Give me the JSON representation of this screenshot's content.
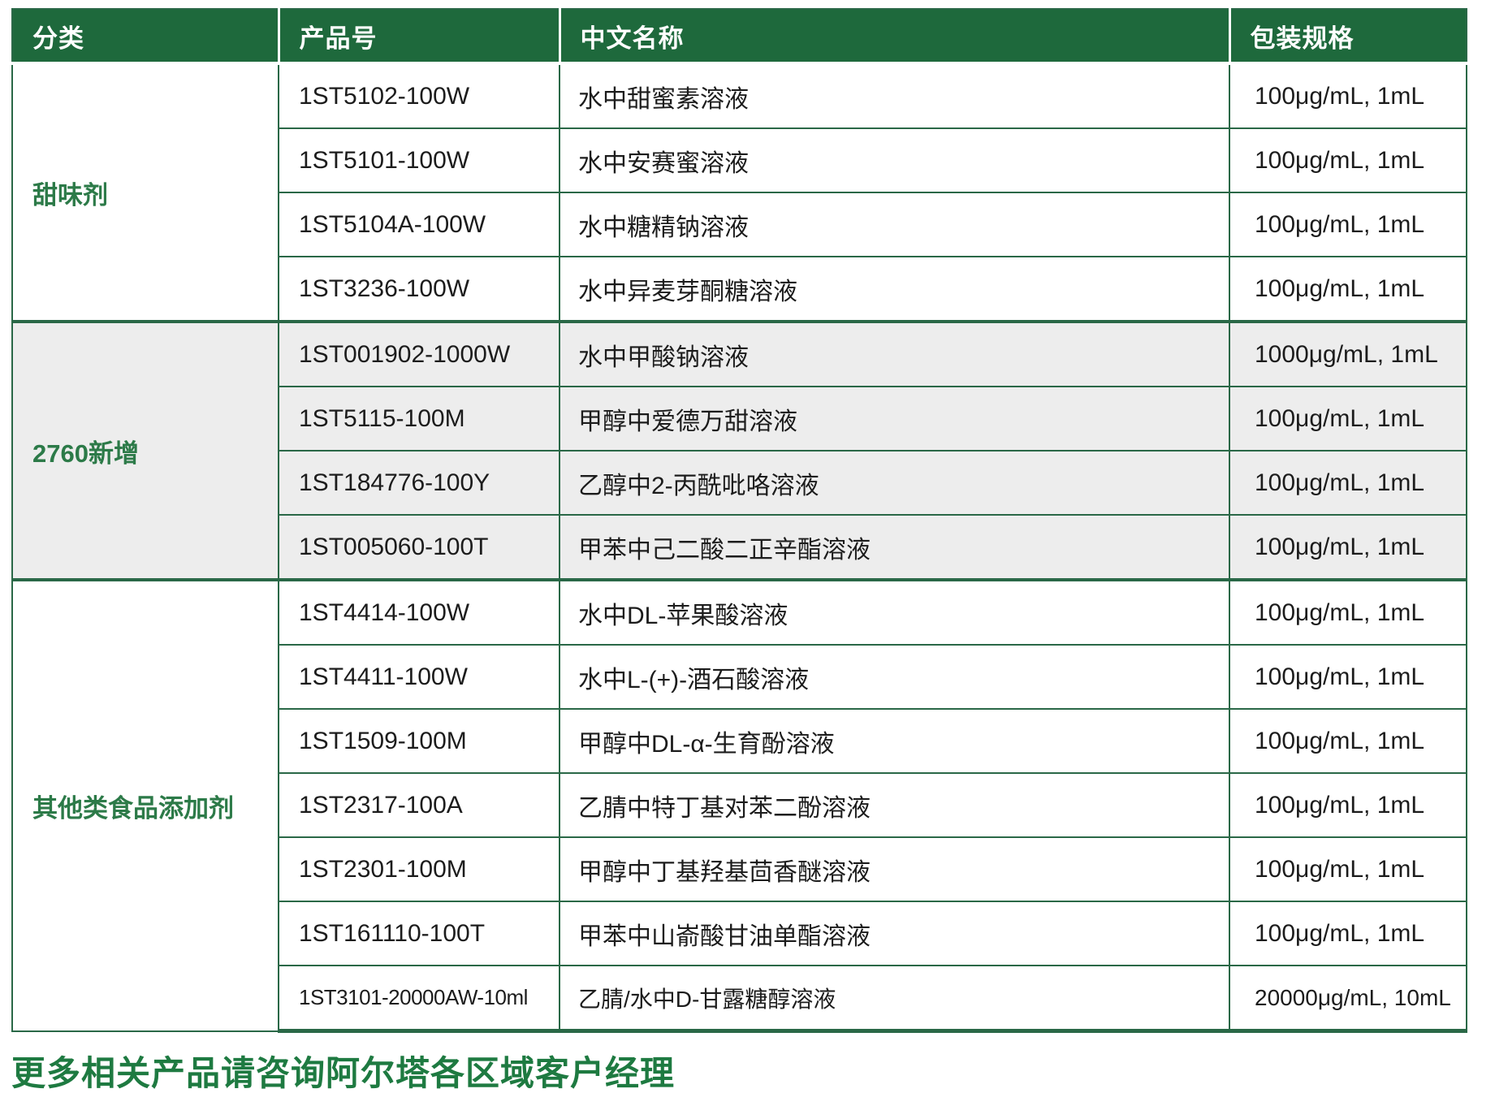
{
  "table": {
    "columns": [
      "分类",
      "产品号",
      "中文名称",
      "包装规格"
    ],
    "groups": [
      {
        "category": "甜味剂",
        "rows": [
          {
            "product": "1ST5102-100W",
            "name": "水中甜蜜素溶液",
            "spec": "100μg/mL, 1mL"
          },
          {
            "product": "1ST5101-100W",
            "name": "水中安赛蜜溶液",
            "spec": "100μg/mL, 1mL"
          },
          {
            "product": "1ST5104A-100W",
            "name": "水中糖精钠溶液",
            "spec": "100μg/mL, 1mL"
          },
          {
            "product": "1ST3236-100W",
            "name": "水中异麦芽酮糖溶液",
            "spec": "100μg/mL, 1mL"
          }
        ]
      },
      {
        "category": "2760新增",
        "rows": [
          {
            "product": "1ST001902-1000W",
            "name": "水中甲酸钠溶液",
            "spec": "1000μg/mL, 1mL"
          },
          {
            "product": "1ST5115-100M",
            "name": "甲醇中爱德万甜溶液",
            "spec": "100μg/mL, 1mL"
          },
          {
            "product": "1ST184776-100Y",
            "name": "乙醇中2-丙酰吡咯溶液",
            "spec": "100μg/mL, 1mL"
          },
          {
            "product": "1ST005060-100T",
            "name": "甲苯中己二酸二正辛酯溶液",
            "spec": "100μg/mL, 1mL"
          }
        ]
      },
      {
        "category": "其他类食品添加剂",
        "rows": [
          {
            "product": "1ST4414-100W",
            "name": "水中DL-苹果酸溶液",
            "spec": "100μg/mL, 1mL"
          },
          {
            "product": "1ST4411-100W",
            "name": "水中L-(+)-酒石酸溶液",
            "spec": "100μg/mL, 1mL"
          },
          {
            "product": "1ST1509-100M",
            "name": "甲醇中DL-α-生育酚溶液",
            "spec": "100μg/mL, 1mL"
          },
          {
            "product": "1ST2317-100A",
            "name": "乙腈中特丁基对苯二酚溶液",
            "spec": "100μg/mL, 1mL"
          },
          {
            "product": "1ST2301-100M",
            "name": "甲醇中丁基羟基茴香醚溶液",
            "spec": "100μg/mL, 1mL"
          },
          {
            "product": "1ST161110-100T",
            "name": "甲苯中山嵛酸甘油单酯溶液",
            "spec": "100μg/mL, 1mL"
          },
          {
            "product": "1ST3101-20000AW-10ml",
            "name": "乙腈/水中D-甘露糖醇溶液",
            "spec": "20000μg/mL, 10mL"
          }
        ]
      }
    ]
  },
  "footer": {
    "note": "更多相关产品请咨询阿尔塔各区域客户经理"
  },
  "colors": {
    "header_bg": "#1e693c",
    "border_green": "#2a6847",
    "category_text": "#2c7a48",
    "footer_text": "#1e7a41",
    "alt_row_bg": "#ededed",
    "header_text": "#ffffff",
    "body_text": "#1c1c1c"
  }
}
